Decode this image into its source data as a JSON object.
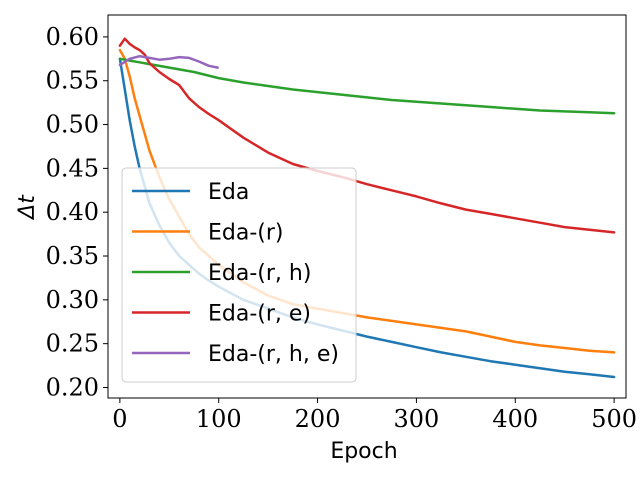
{
  "chart_data": {
    "type": "line",
    "title": "",
    "xlabel": "Epoch",
    "ylabel": "Δt",
    "xlim": [
      -12,
      512
    ],
    "ylim": [
      0.188,
      0.625
    ],
    "xticks": [
      0,
      100,
      200,
      300,
      400,
      500
    ],
    "xtick_labels": [
      "0",
      "100",
      "200",
      "300",
      "400",
      "500"
    ],
    "yticks": [
      0.2,
      0.25,
      0.3,
      0.35,
      0.4,
      0.45,
      0.5,
      0.55,
      0.6
    ],
    "ytick_labels": [
      "0.20",
      "0.25",
      "0.30",
      "0.35",
      "0.40",
      "0.45",
      "0.50",
      "0.55",
      "0.60"
    ],
    "grid": false,
    "legend_position": "center-left",
    "series": [
      {
        "name": "Eda",
        "color": "#1f77b4",
        "x": [
          0,
          5,
          10,
          15,
          20,
          25,
          30,
          40,
          50,
          60,
          70,
          80,
          90,
          100,
          125,
          150,
          175,
          200,
          225,
          250,
          275,
          300,
          325,
          350,
          375,
          400,
          425,
          450,
          475,
          500
        ],
        "y": [
          0.575,
          0.54,
          0.505,
          0.475,
          0.45,
          0.43,
          0.41,
          0.385,
          0.365,
          0.35,
          0.34,
          0.33,
          0.322,
          0.315,
          0.3,
          0.29,
          0.28,
          0.272,
          0.265,
          0.258,
          0.252,
          0.246,
          0.24,
          0.235,
          0.23,
          0.226,
          0.222,
          0.218,
          0.215,
          0.212
        ]
      },
      {
        "name": "Eda-(r)",
        "color": "#ff7f0e",
        "x": [
          0,
          5,
          10,
          15,
          20,
          25,
          30,
          40,
          50,
          60,
          70,
          80,
          90,
          100,
          125,
          150,
          175,
          200,
          225,
          250,
          275,
          300,
          325,
          350,
          375,
          400,
          425,
          450,
          475,
          500
        ],
        "y": [
          0.585,
          0.575,
          0.555,
          0.53,
          0.51,
          0.49,
          0.47,
          0.44,
          0.415,
          0.395,
          0.375,
          0.36,
          0.35,
          0.34,
          0.32,
          0.305,
          0.295,
          0.29,
          0.285,
          0.28,
          0.276,
          0.272,
          0.268,
          0.264,
          0.258,
          0.252,
          0.248,
          0.245,
          0.242,
          0.24
        ]
      },
      {
        "name": "Eda-(r, h)",
        "color": "#2ca02c",
        "x": [
          0,
          10,
          20,
          30,
          50,
          75,
          100,
          125,
          150,
          175,
          200,
          225,
          250,
          275,
          300,
          325,
          350,
          375,
          400,
          425,
          450,
          475,
          500
        ],
        "y": [
          0.575,
          0.573,
          0.571,
          0.569,
          0.565,
          0.56,
          0.553,
          0.548,
          0.544,
          0.54,
          0.537,
          0.534,
          0.531,
          0.528,
          0.526,
          0.524,
          0.522,
          0.52,
          0.518,
          0.516,
          0.515,
          0.514,
          0.513
        ]
      },
      {
        "name": "Eda-(r, e)",
        "color": "#d62728",
        "x": [
          0,
          5,
          10,
          15,
          20,
          25,
          30,
          40,
          50,
          60,
          70,
          80,
          90,
          100,
          125,
          150,
          175,
          200,
          225,
          250,
          275,
          300,
          325,
          350,
          375,
          400,
          425,
          450,
          475,
          500
        ],
        "y": [
          0.59,
          0.598,
          0.592,
          0.588,
          0.585,
          0.58,
          0.57,
          0.56,
          0.552,
          0.545,
          0.53,
          0.52,
          0.512,
          0.505,
          0.485,
          0.468,
          0.455,
          0.447,
          0.44,
          0.432,
          0.425,
          0.418,
          0.41,
          0.403,
          0.398,
          0.393,
          0.388,
          0.383,
          0.38,
          0.377
        ]
      },
      {
        "name": "Eda-(r, h, e)",
        "color": "#9467bd",
        "x": [
          0,
          10,
          20,
          30,
          40,
          50,
          60,
          70,
          80,
          90,
          99
        ],
        "y": [
          0.568,
          0.575,
          0.578,
          0.576,
          0.574,
          0.575,
          0.577,
          0.576,
          0.572,
          0.567,
          0.565
        ]
      }
    ]
  }
}
